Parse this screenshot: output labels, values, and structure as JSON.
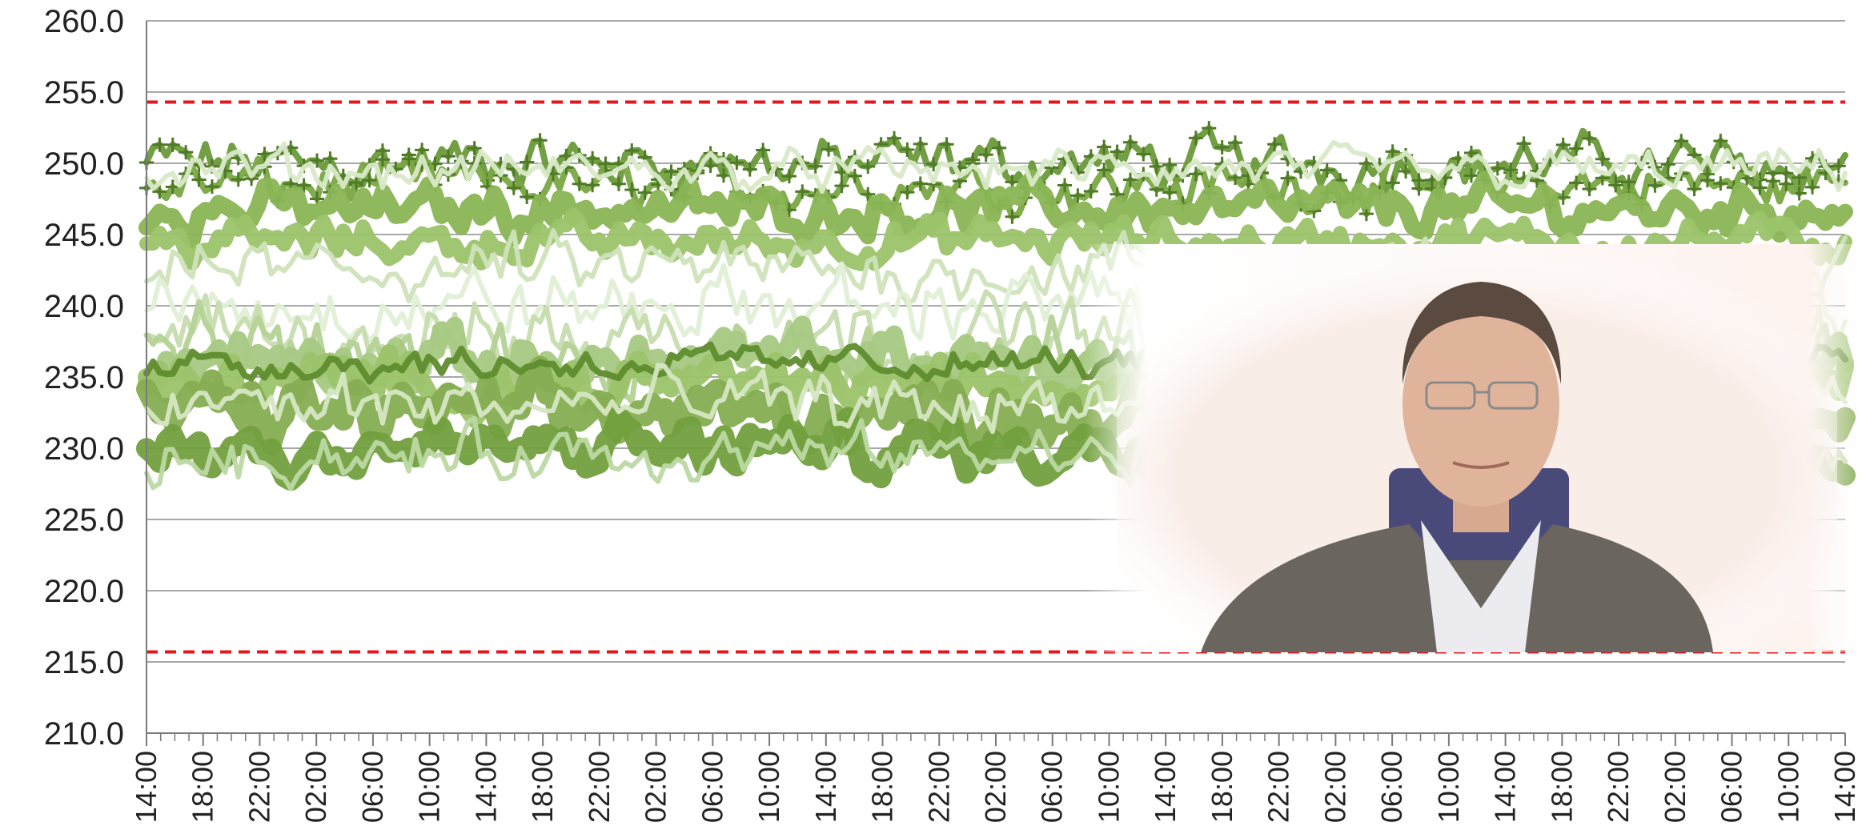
{
  "chart_data": {
    "type": "line",
    "title": "",
    "xlabel": "",
    "ylabel": "",
    "ylim": [
      210.0,
      260.0
    ],
    "y_ticks": [
      "210.0",
      "215.0",
      "220.0",
      "225.0",
      "230.0",
      "235.0",
      "240.0",
      "245.0",
      "250.0",
      "255.0",
      "260.0"
    ],
    "x_ticks": [
      "14:00",
      "18:00",
      "22:00",
      "02:00",
      "06:00",
      "10:00",
      "14:00",
      "18:00",
      "22:00",
      "02:00",
      "06:00",
      "10:00",
      "14:00",
      "18:00",
      "22:00",
      "02:00",
      "06:00",
      "10:00",
      "14:00",
      "18:00",
      "22:00",
      "02:00",
      "06:00",
      "10:00",
      "14:00",
      "18:00",
      "22:00",
      "02:00",
      "06:00",
      "10:00",
      "14:00"
    ],
    "grid": true,
    "legend": "none",
    "reference_lines": [
      {
        "value": 254.3,
        "style": "dashed",
        "color": "#e8141b"
      },
      {
        "value": 215.7,
        "style": "dashed",
        "color": "#e8141b"
      }
    ],
    "series_bands": [
      {
        "color": "#6a9a3a",
        "marker": "plus",
        "center": 250.0,
        "amp": 2.6,
        "width": 8
      },
      {
        "color": "#7aa844",
        "marker": "plus",
        "center": 248.5,
        "amp": 2.4,
        "width": 8
      },
      {
        "color": "#8ab555",
        "marker": "circle",
        "center": 246.8,
        "amp": 2.2,
        "width": 20
      },
      {
        "color": "#9cc36a",
        "marker": "circle",
        "center": 244.5,
        "amp": 2.0,
        "width": 18
      },
      {
        "color": "#d9e9c8",
        "marker": "none",
        "center": 249.5,
        "amp": 2.0,
        "width": 6
      },
      {
        "color": "#cfe3bb",
        "marker": "none",
        "center": 242.5,
        "amp": 3.0,
        "width": 6
      },
      {
        "color": "#e2efd6",
        "marker": "none",
        "center": 240.0,
        "amp": 3.4,
        "width": 6
      },
      {
        "color": "#c6dcae",
        "marker": "none",
        "center": 238.0,
        "amp": 3.6,
        "width": 6
      },
      {
        "color": "#b5d296",
        "marker": "none",
        "center": 236.5,
        "amp": 3.8,
        "width": 7
      },
      {
        "color": "#a6c983",
        "marker": "square",
        "center": 236.0,
        "amp": 2.8,
        "width": 22
      },
      {
        "color": "#9cc36a",
        "marker": "square",
        "center": 234.5,
        "amp": 2.6,
        "width": 22
      },
      {
        "color": "#86ad52",
        "marker": "square",
        "center": 232.5,
        "amp": 2.8,
        "width": 26
      },
      {
        "color": "#72a03e",
        "marker": "square",
        "center": 230.0,
        "amp": 2.6,
        "width": 26
      },
      {
        "color": "#5f8c2e",
        "marker": "triangle",
        "center": 236.0,
        "amp": 1.6,
        "width": 8
      },
      {
        "color": "#d5e7c3",
        "marker": "none",
        "center": 233.0,
        "amp": 3.0,
        "width": 6
      },
      {
        "color": "#bcd8a3",
        "marker": "none",
        "center": 229.5,
        "amp": 2.6,
        "width": 6
      }
    ],
    "photo": {
      "description": "inset portrait photograph",
      "position": "bottom-right"
    }
  }
}
